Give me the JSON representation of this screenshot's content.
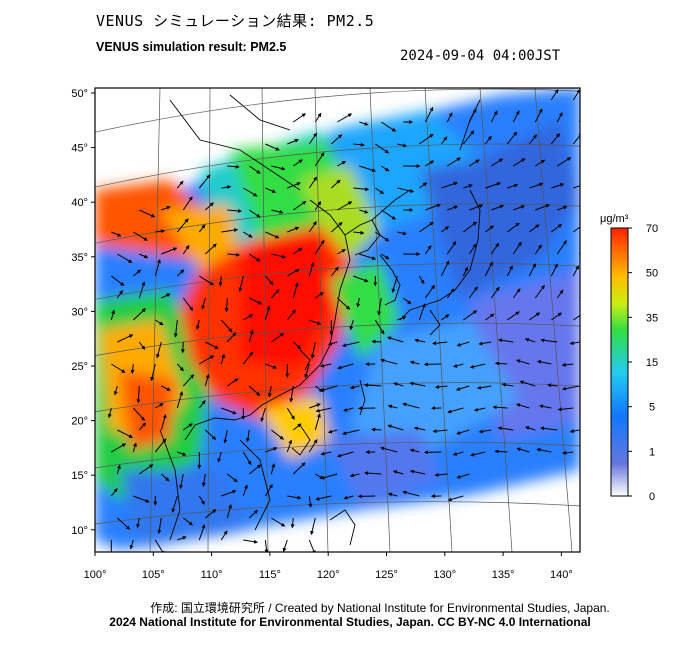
{
  "title_jp": "VENUS シミュレーション結果: PM2.5",
  "title_en": "VENUS simulation result: PM2.5",
  "datetime": "2024-09-04 04:00JST",
  "map": {
    "lat_ticks": [
      "50°",
      "45°",
      "40°",
      "35°",
      "30°",
      "25°",
      "20°",
      "15°",
      "10°"
    ],
    "lon_ticks": [
      "100°",
      "105°",
      "110°",
      "115°",
      "120°",
      "125°",
      "130°",
      "135°",
      "140°"
    ],
    "lat_values": [
      50,
      45,
      40,
      35,
      30,
      25,
      20,
      15,
      10
    ],
    "lon_values": [
      100,
      105,
      110,
      115,
      120,
      125,
      130,
      135,
      140
    ]
  },
  "colorbar": {
    "unit": "μg/m³",
    "labels": [
      "70",
      "50",
      "35",
      "15",
      "5",
      "1",
      "0"
    ],
    "colors": [
      "#ffffff",
      "#3344dd",
      "#1188ff",
      "#22dddd",
      "#33dd33",
      "#ffcc00",
      "#ff3300"
    ]
  },
  "credit_line1": "作成: 国立環境研究所 / Created by National Institute for Environmental Studies, Japan.",
  "credit_line2": "2024 National Institute for Environmental Studies, Japan. CC BY-NC 4.0 International"
}
